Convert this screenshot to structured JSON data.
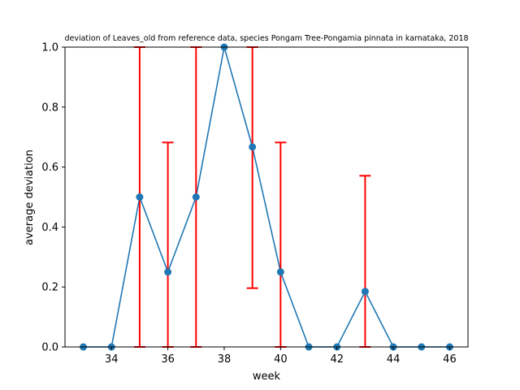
{
  "chart_data": {
    "type": "line",
    "title": "deviation of Leaves_old from reference data, species Pongam Tree-Pongamia pinnata in karnataka, 2018",
    "xlabel": "week",
    "ylabel": "average deviation",
    "xlim": [
      32.35,
      46.65
    ],
    "ylim": [
      0,
      1
    ],
    "x_ticks": [
      34,
      36,
      38,
      40,
      42,
      44,
      46
    ],
    "y_ticks": [
      "0.0",
      "0.2",
      "0.4",
      "0.6",
      "0.8",
      "1.0"
    ],
    "grid": false,
    "legend": "none",
    "series": [
      {
        "x": [
          33,
          34,
          35,
          36,
          37,
          38,
          39,
          40,
          41,
          42,
          43,
          44,
          45,
          46
        ],
        "y": [
          0,
          0,
          0.5,
          0.25,
          0.5,
          1.0,
          0.667,
          0.25,
          0,
          0,
          0.185,
          0,
          0,
          0
        ],
        "error_low": [
          0,
          0,
          0,
          0,
          0,
          1.0,
          0.196,
          0,
          0,
          0,
          0,
          0,
          0,
          0
        ],
        "error_high": [
          0,
          0,
          1.0,
          0.682,
          1.0,
          1.0,
          1.0,
          0.682,
          0,
          0,
          0.571,
          0,
          0,
          0
        ],
        "color": "#1f77b4",
        "error_color": "#ff0000"
      }
    ]
  }
}
